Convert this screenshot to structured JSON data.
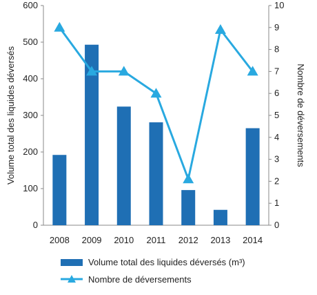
{
  "chart_data": {
    "type": "bar",
    "categories": [
      "2008",
      "2009",
      "2010",
      "2011",
      "2012",
      "2013",
      "2014"
    ],
    "series": [
      {
        "name": "Volume total des liquides déversés (m³)",
        "type": "bar",
        "axis": "left",
        "color": "#1f6fb4",
        "values": [
          192,
          493,
          324,
          281,
          96,
          42,
          265
        ]
      },
      {
        "name": "Nombre de déversements",
        "type": "line",
        "axis": "right",
        "color": "#29a9e0",
        "marker": "triangle",
        "values": [
          9,
          7,
          7,
          6,
          2.1,
          8.9,
          7
        ]
      }
    ],
    "y_left": {
      "label": "Volume total des liquides déversés",
      "ylim": [
        0,
        600
      ],
      "ticks": [
        "0",
        "100",
        "200",
        "300",
        "400",
        "500",
        "600"
      ]
    },
    "y_right": {
      "label": "Nombre de déversements",
      "ylim": [
        0,
        10
      ],
      "ticks": [
        "0",
        "1",
        "2",
        "3",
        "4",
        "5",
        "6",
        "7",
        "8",
        "9",
        "10"
      ]
    },
    "grid": false,
    "legend": "bottom-center"
  }
}
